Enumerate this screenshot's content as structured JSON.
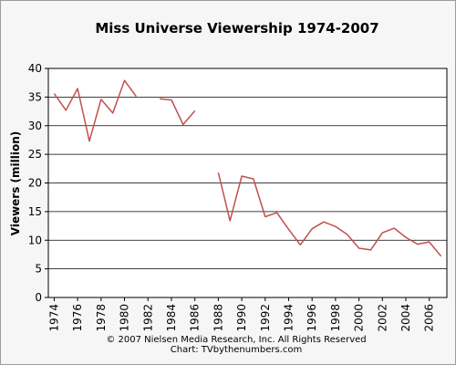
{
  "chart_data": {
    "type": "line",
    "title": "Miss Universe Viewership 1974-2007",
    "xlabel": "",
    "ylabel": "Viewers (million)",
    "xlim": [
      1973.5,
      2007.5
    ],
    "ylim": [
      0,
      40
    ],
    "y_ticks": [
      0,
      5,
      10,
      15,
      20,
      25,
      30,
      35,
      40
    ],
    "x_ticks": [
      1974,
      1976,
      1978,
      1980,
      1982,
      1984,
      1986,
      1988,
      1990,
      1992,
      1994,
      1996,
      1998,
      2000,
      2002,
      2004,
      2006
    ],
    "grid": "horizontal",
    "line_color": "#c0504d",
    "series": [
      {
        "segments": [
          {
            "x": [
              1974,
              1975,
              1976,
              1977,
              1978,
              1979,
              1980,
              1981
            ],
            "y": [
              35.6,
              32.7,
              36.5,
              27.3,
              34.6,
              32.2,
              37.9,
              35.1
            ]
          },
          {
            "x": [
              1983,
              1984,
              1985,
              1986
            ],
            "y": [
              34.7,
              34.5,
              30.2,
              32.6
            ]
          },
          {
            "x": [
              1988,
              1989,
              1990,
              1991,
              1992,
              1993,
              1994,
              1995,
              1996,
              1997,
              1998,
              1999,
              2000,
              2001,
              2002,
              2003,
              2004,
              2005,
              2006,
              2007
            ],
            "y": [
              21.8,
              13.4,
              21.2,
              20.7,
              14.1,
              14.8,
              11.9,
              9.2,
              12.0,
              13.2,
              12.4,
              11.0,
              8.6,
              8.3,
              11.3,
              12.1,
              10.5,
              9.3,
              9.7,
              7.2
            ]
          }
        ]
      }
    ],
    "footer_lines": [
      "© 2007 Nielsen Media Research, Inc. All Rights Reserved",
      "Chart: TVbythenumbers.com"
    ]
  }
}
